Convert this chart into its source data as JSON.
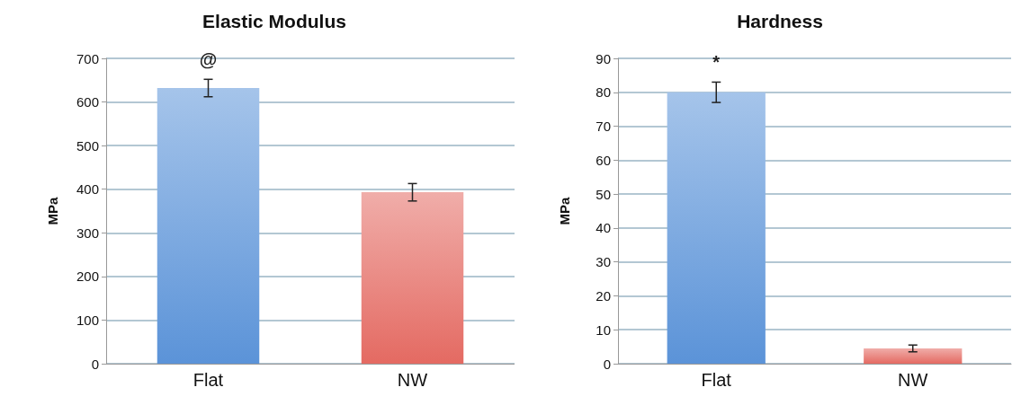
{
  "chart_data": [
    {
      "type": "bar",
      "title": "Elastic Modulus",
      "ylabel": "MPa",
      "categories": [
        "Flat",
        "NW"
      ],
      "values": [
        632,
        393
      ],
      "colors": [
        "#5b93d8",
        "#e46a62"
      ],
      "errors": [
        20,
        20
      ],
      "ylim": [
        0,
        700
      ],
      "yticks": [
        0,
        100,
        200,
        300,
        400,
        500,
        600,
        700
      ],
      "grid": "y",
      "annotations": [
        "@"
      ]
    },
    {
      "type": "bar",
      "title": "Hardness",
      "ylabel": "MPa",
      "categories": [
        "Flat",
        "NW"
      ],
      "values": [
        80,
        4.5
      ],
      "colors": [
        "#5b93d8",
        "#e46a62"
      ],
      "errors": [
        3,
        1
      ],
      "ylim": [
        0,
        90
      ],
      "yticks": [
        0,
        10,
        20,
        30,
        40,
        50,
        60,
        70,
        80,
        90
      ],
      "grid": "y",
      "annotations": [
        "*"
      ]
    }
  ]
}
